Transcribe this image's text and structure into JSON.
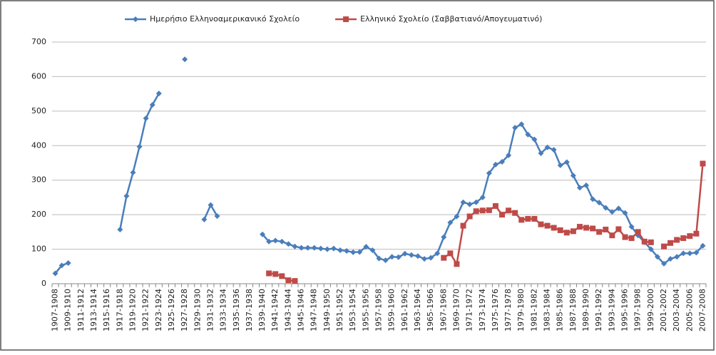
{
  "chart_data": {
    "type": "line",
    "categories": [
      "1907-1908",
      null,
      "1909-1910",
      null,
      "1911-1912",
      null,
      "1913-1914",
      null,
      "1915-1916",
      null,
      "1917-1918",
      null,
      "1919-1920",
      null,
      "1921-1922",
      null,
      "1923-1924",
      null,
      "1925-1926",
      null,
      "1927-1928",
      null,
      "1929-1930",
      null,
      "1931-1932",
      null,
      "1933-1934",
      null,
      "1935-1936",
      null,
      "1937-1938",
      null,
      "1939-1940",
      null,
      "1941-1942",
      null,
      "1943-1944",
      null,
      "1945-1946",
      null,
      "1947-1948",
      null,
      "1949-1950",
      null,
      "1951-1952",
      null,
      "1953-1954",
      null,
      "1955-1956",
      null,
      "1957-1958",
      null,
      "1959-1960",
      null,
      "1961-1962",
      null,
      "1963-1964",
      null,
      "1965-1966",
      null,
      "1967-1968",
      null,
      "1969-1970",
      null,
      "1971-1972",
      null,
      "1973-1974",
      null,
      "1975-1976",
      null,
      "1977-1978",
      null,
      "1979-1980",
      null,
      "1981-1982",
      null,
      "1983-1984",
      null,
      "1985-1986",
      null,
      "1987-1988",
      null,
      "1989-1990",
      null,
      "1991-1992",
      null,
      "1993-1994",
      null,
      "1995-1996",
      null,
      "1997-1998",
      null,
      "1999-2000",
      null,
      "2001-2002",
      null,
      "2003-2004",
      null,
      "2005-2006",
      null,
      "2007-2008"
    ],
    "series": [
      {
        "name": "Ημερήσιο Ελληνοαμερικανικό Σχολείο",
        "color": "#4a7ebb",
        "marker": "diamond",
        "values": [
          30,
          53,
          60,
          null,
          null,
          null,
          null,
          null,
          null,
          null,
          157,
          254,
          322,
          397,
          479,
          518,
          551,
          null,
          null,
          null,
          650,
          null,
          null,
          186,
          228,
          196,
          null,
          null,
          null,
          null,
          null,
          null,
          143,
          122,
          125,
          122,
          115,
          108,
          104,
          104,
          104,
          102,
          100,
          102,
          97,
          95,
          91,
          92,
          107,
          97,
          73,
          68,
          78,
          77,
          87,
          83,
          80,
          72,
          75,
          88,
          135,
          177,
          195,
          236,
          230,
          236,
          250,
          320,
          345,
          353,
          372,
          452,
          462,
          432,
          418,
          378,
          395,
          388,
          343,
          352,
          313,
          278,
          285,
          245,
          235,
          220,
          208,
          218,
          205,
          165,
          140,
          120,
          100,
          78,
          58,
          72,
          78,
          88,
          88,
          90,
          110
        ]
      },
      {
        "name": "Ελληνικό Σχολείο (Σαββατιανό/Απογευματινό)",
        "color": "#be4b48",
        "marker": "square",
        "values": [
          null,
          null,
          null,
          null,
          null,
          null,
          null,
          null,
          null,
          null,
          null,
          null,
          null,
          null,
          null,
          null,
          null,
          null,
          null,
          null,
          null,
          null,
          null,
          null,
          null,
          null,
          null,
          null,
          null,
          null,
          null,
          null,
          null,
          30,
          28,
          22,
          10,
          8,
          null,
          null,
          null,
          null,
          null,
          null,
          null,
          null,
          null,
          null,
          null,
          null,
          null,
          null,
          null,
          null,
          null,
          null,
          null,
          null,
          null,
          null,
          75,
          88,
          57,
          168,
          195,
          210,
          212,
          213,
          225,
          200,
          212,
          205,
          185,
          188,
          188,
          172,
          168,
          162,
          155,
          148,
          152,
          165,
          162,
          160,
          150,
          157,
          140,
          158,
          135,
          132,
          150,
          122,
          120,
          null,
          108,
          118,
          127,
          132,
          138,
          145,
          348
        ]
      }
    ],
    "ylim": [
      0,
      700
    ],
    "yticks": [
      0,
      100,
      200,
      300,
      400,
      500,
      600,
      700
    ],
    "grid": true,
    "legend": "top"
  }
}
